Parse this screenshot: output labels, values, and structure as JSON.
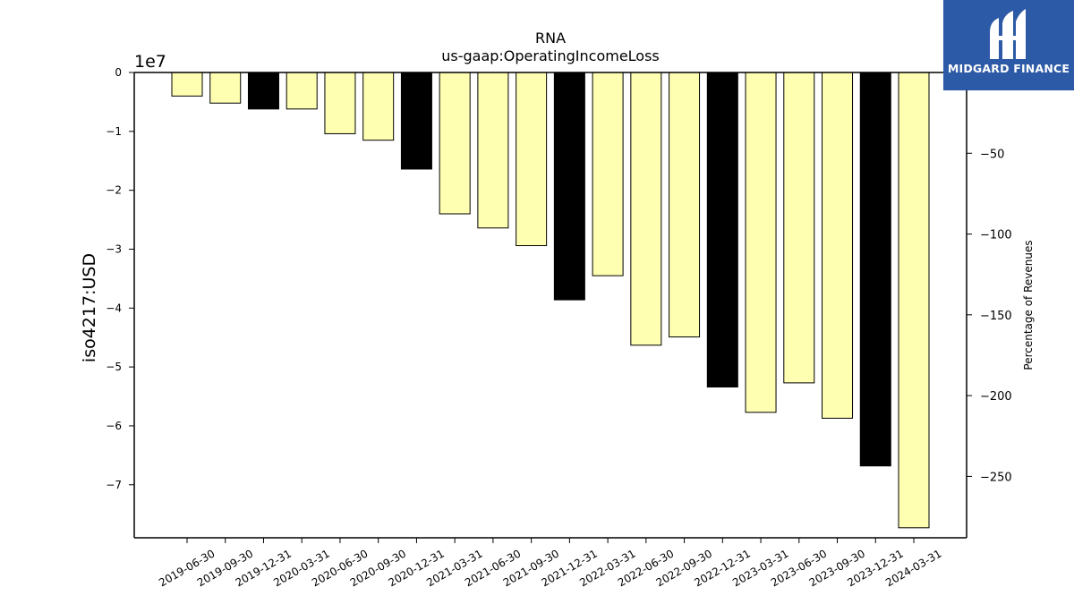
{
  "chart_data": {
    "type": "bar",
    "title": "RNA",
    "subtitle": "us-gaap:OperatingIncomeLoss",
    "ylabel": "iso4217:USD",
    "y_offset_label": "1e7",
    "y2label": "Percentage of Revenues",
    "categories": [
      "2019-06-30",
      "2019-09-30",
      "2019-12-31",
      "2020-03-31",
      "2020-06-30",
      "2020-09-30",
      "2020-12-31",
      "2021-03-31",
      "2021-06-30",
      "2021-09-30",
      "2021-12-31",
      "2022-03-31",
      "2022-06-30",
      "2022-09-30",
      "2022-12-31",
      "2023-03-31",
      "2023-06-30",
      "2023-09-30",
      "2023-12-31",
      "2024-03-31"
    ],
    "values": [
      -4000000,
      -5200000,
      -6200000,
      -6200000,
      -10400000,
      -11500000,
      -16400000,
      -24000000,
      -26400000,
      -29400000,
      -38600000,
      -34500000,
      -46300000,
      -44900000,
      -53400000,
      -57700000,
      -52700000,
      -58700000,
      -66800000,
      -77300000
    ],
    "fills": [
      "#ffffb2",
      "#ffffb2",
      "#000000",
      "#ffffb2",
      "#ffffb2",
      "#ffffb2",
      "#000000",
      "#ffffb2",
      "#ffffb2",
      "#ffffb2",
      "#000000",
      "#ffffb2",
      "#ffffb2",
      "#ffffb2",
      "#000000",
      "#ffffb2",
      "#ffffb2",
      "#ffffb2",
      "#000000",
      "#ffffb2"
    ],
    "ylim": [
      -79000000,
      0
    ],
    "yticks": [
      0,
      -10000000,
      -20000000,
      -30000000,
      -40000000,
      -50000000,
      -60000000,
      -70000000
    ],
    "ytick_labels": [
      "0",
      "−1",
      "−2",
      "−3",
      "−4",
      "−5",
      "−6",
      "−7"
    ],
    "y2lim": [
      0,
      -288
    ],
    "y2ticks": [
      -250,
      -200,
      -150,
      -100,
      -50,
      0
    ],
    "y2tick_labels": [
      "−250",
      "−200",
      "−150",
      "−100",
      "−50",
      "0"
    ],
    "grid": false,
    "colors": {
      "light_bar": "#ffffb2",
      "dark_bar": "#000000",
      "edge": "#000000"
    }
  },
  "logo": {
    "text": "MIDGARD FINANCE",
    "background": "#2d5aa6"
  }
}
